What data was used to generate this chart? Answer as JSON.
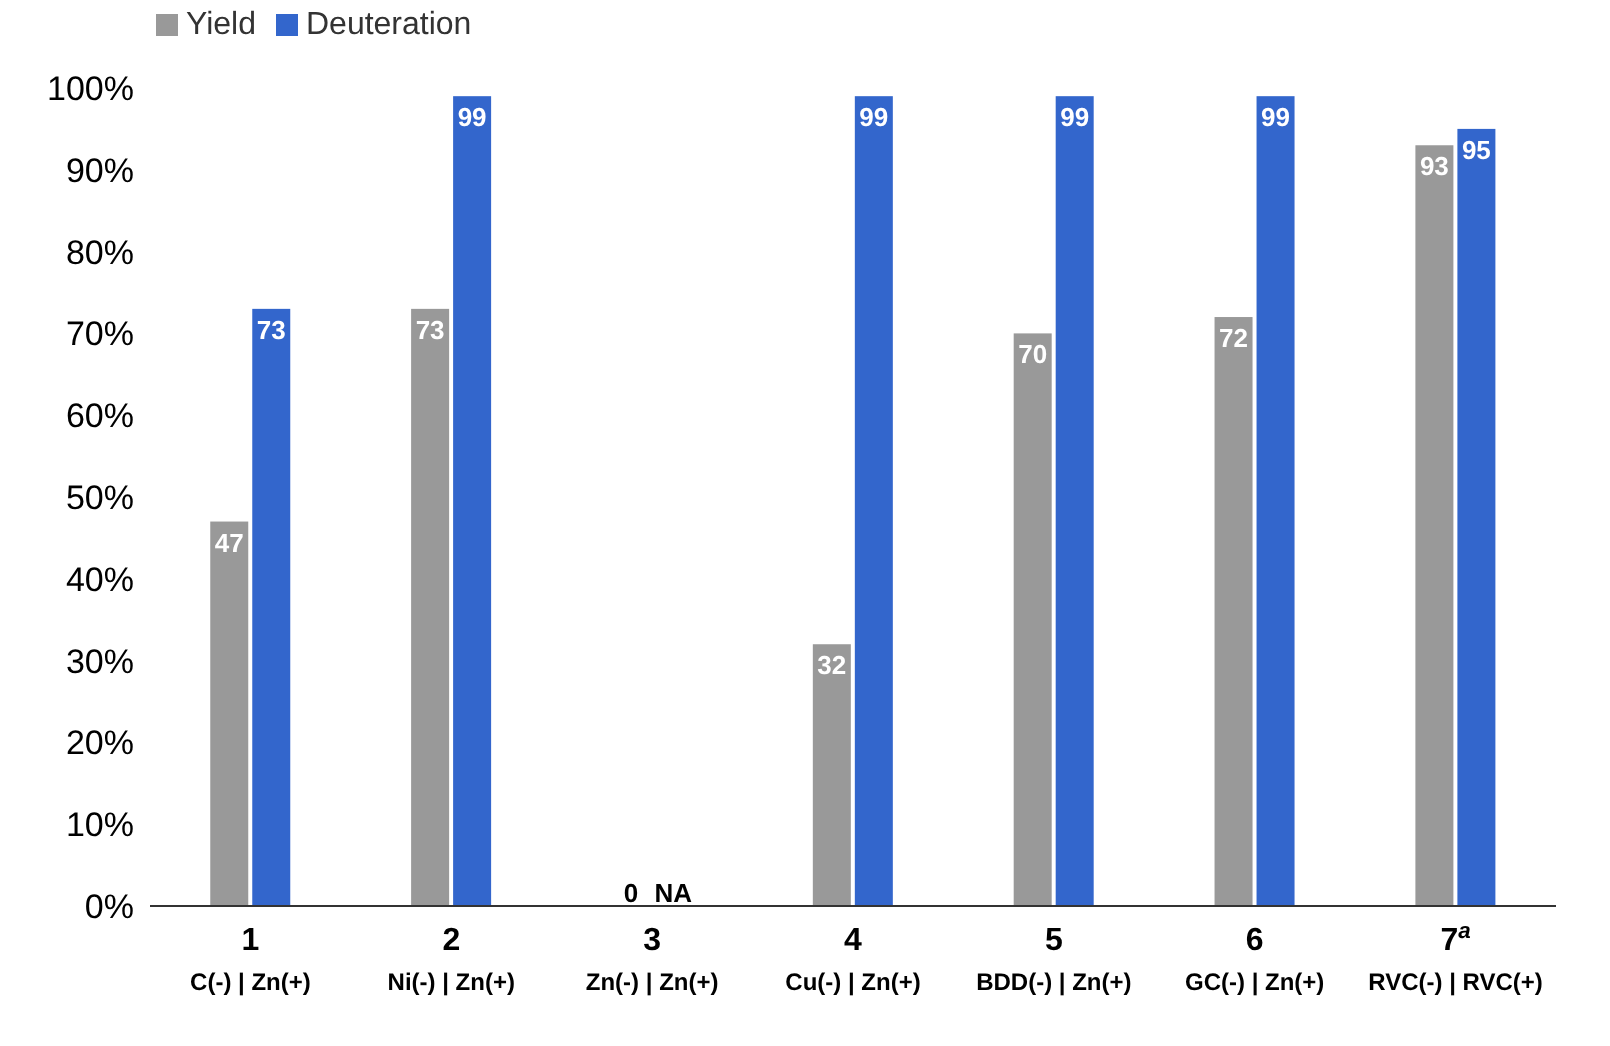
{
  "chart_data": {
    "type": "bar",
    "categories": [
      "1\nC(-) | Zn(+)",
      "2\nNi(-) | Zn(+)",
      "3\nZn(-) | Zn(+)",
      "4\nCu(-) | Zn(+)",
      "5\nBDD(-) | Zn(+)",
      "6\nGC(-) | Zn(+)",
      "7$^{a}$\nRVC(-) | RVC(+)"
    ],
    "series": [
      {
        "name": "Yield",
        "color": "#999999",
        "values": [
          47,
          73,
          0,
          32,
          70,
          72,
          93
        ],
        "value_labels": [
          "47",
          "73",
          "0",
          "32",
          "70",
          "72",
          "93"
        ]
      },
      {
        "name": "Deuteration",
        "color": "#3366cc",
        "values": [
          73,
          99,
          null,
          99,
          99,
          99,
          95
        ],
        "value_labels": [
          "73",
          "99",
          "NA",
          "99",
          "99",
          "99",
          "95"
        ]
      }
    ],
    "ylim": [
      0,
      100
    ],
    "yticks": [
      {
        "value": 0,
        "label": "0%"
      },
      {
        "value": 10,
        "label": "10%"
      },
      {
        "value": 20,
        "label": "20%"
      },
      {
        "value": 30,
        "label": "30%"
      },
      {
        "value": 40,
        "label": "40%"
      },
      {
        "value": 50,
        "label": "50%"
      },
      {
        "value": 60,
        "label": "60%"
      },
      {
        "value": 70,
        "label": "70%"
      },
      {
        "value": 80,
        "label": "80%"
      },
      {
        "value": 90,
        "label": "90%"
      },
      {
        "value": 100,
        "label": "100%"
      }
    ],
    "grid": false,
    "legend": "top left"
  }
}
